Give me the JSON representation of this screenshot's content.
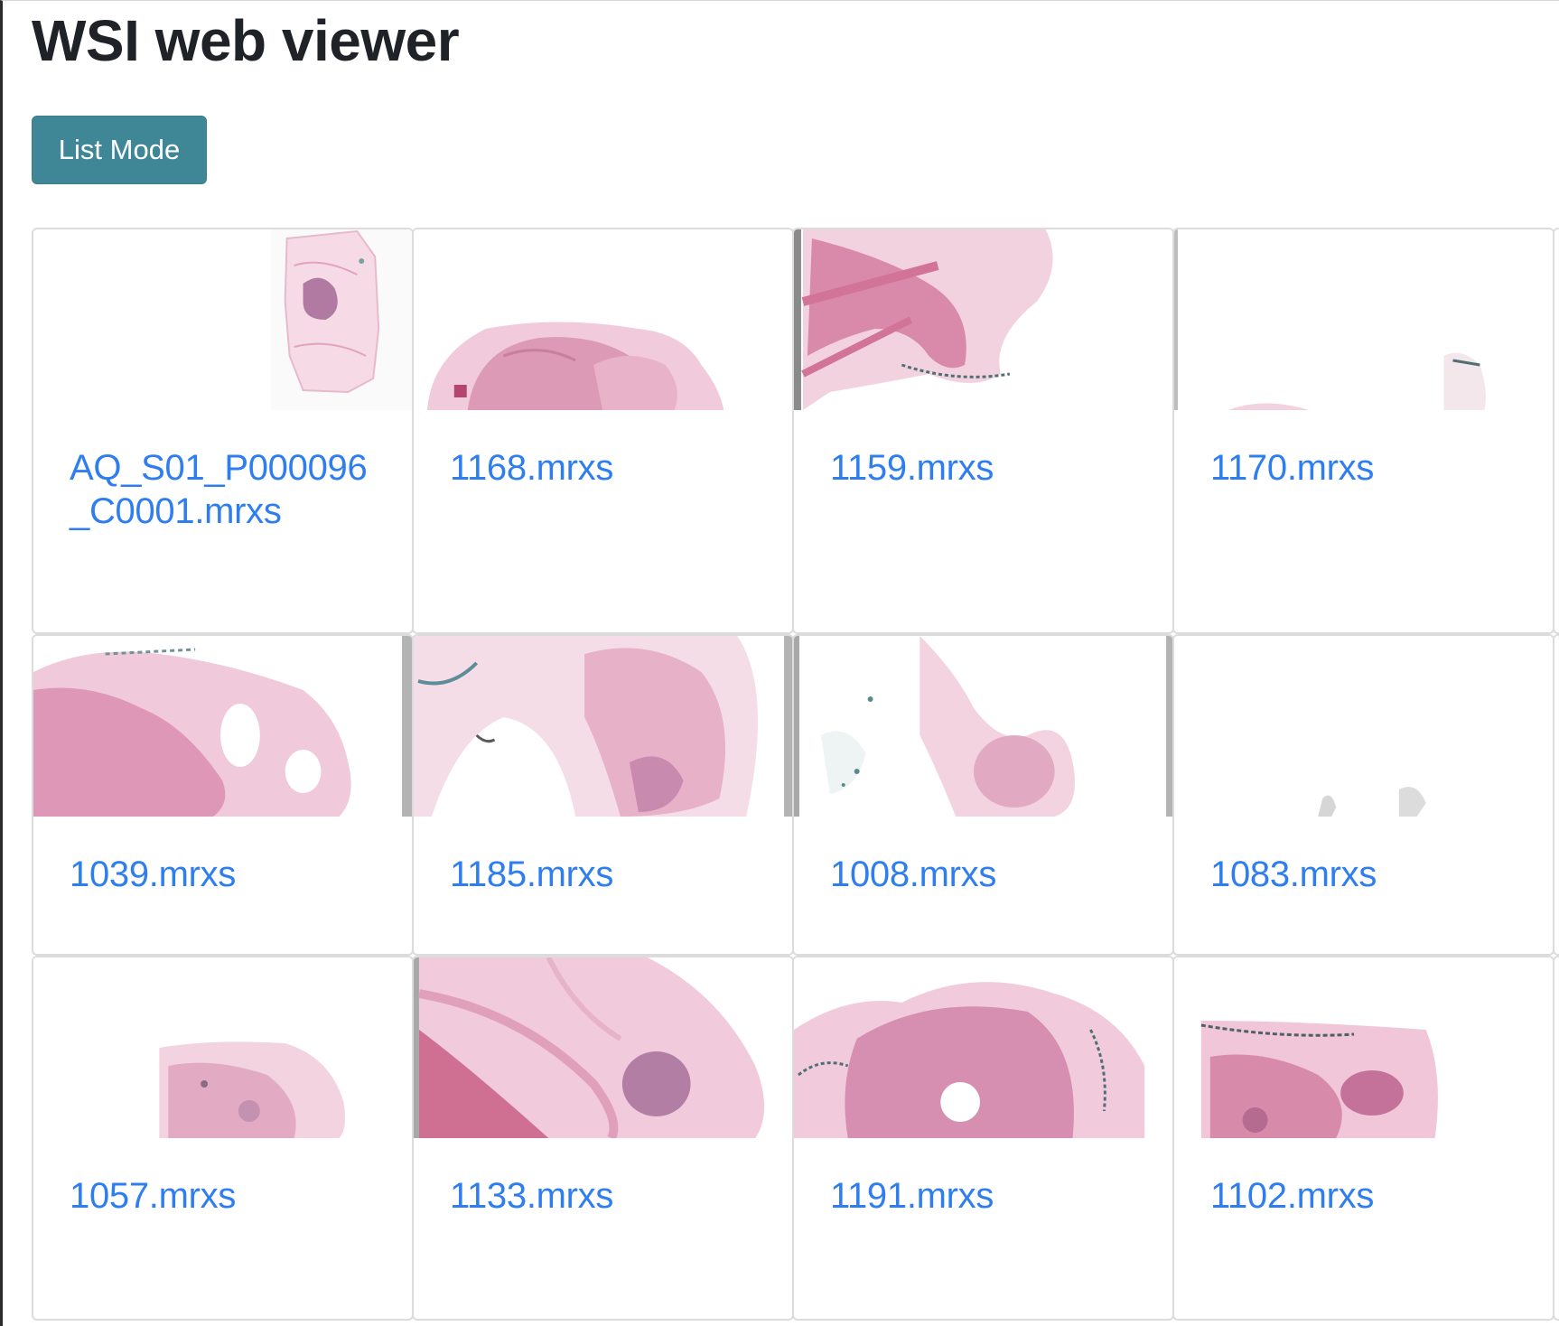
{
  "header": {
    "title": "WSI web viewer"
  },
  "toolbar": {
    "mode_button_label": "List Mode"
  },
  "slides": [
    {
      "name": "AQ_S01_P000096_C0001.mrxs",
      "thumbnail": "he-stain-slide-thumbnail"
    },
    {
      "name": "1168.mrxs",
      "thumbnail": "he-stain-slide-thumbnail"
    },
    {
      "name": "1159.mrxs",
      "thumbnail": "he-stain-slide-thumbnail"
    },
    {
      "name": "1170.mrxs",
      "thumbnail": "he-stain-slide-thumbnail"
    },
    {
      "name": "1039.mrxs",
      "thumbnail": "he-stain-slide-thumbnail"
    },
    {
      "name": "1185.mrxs",
      "thumbnail": "he-stain-slide-thumbnail"
    },
    {
      "name": "1008.mrxs",
      "thumbnail": "he-stain-slide-thumbnail"
    },
    {
      "name": "1083.mrxs",
      "thumbnail": "he-stain-slide-thumbnail"
    },
    {
      "name": "1057.mrxs",
      "thumbnail": "he-stain-slide-thumbnail"
    },
    {
      "name": "1133.mrxs",
      "thumbnail": "he-stain-slide-thumbnail"
    },
    {
      "name": "1191.mrxs",
      "thumbnail": "he-stain-slide-thumbnail"
    },
    {
      "name": "1102.mrxs",
      "thumbnail": "he-stain-slide-thumbnail"
    }
  ],
  "colors": {
    "link": "#2f7ef0",
    "button": "#3f8797",
    "tissue_pink": "#e6a6bf",
    "tissue_dark": "#c97799",
    "tissue_purple": "#a9719a",
    "stain_teal": "#5a8a8e"
  }
}
